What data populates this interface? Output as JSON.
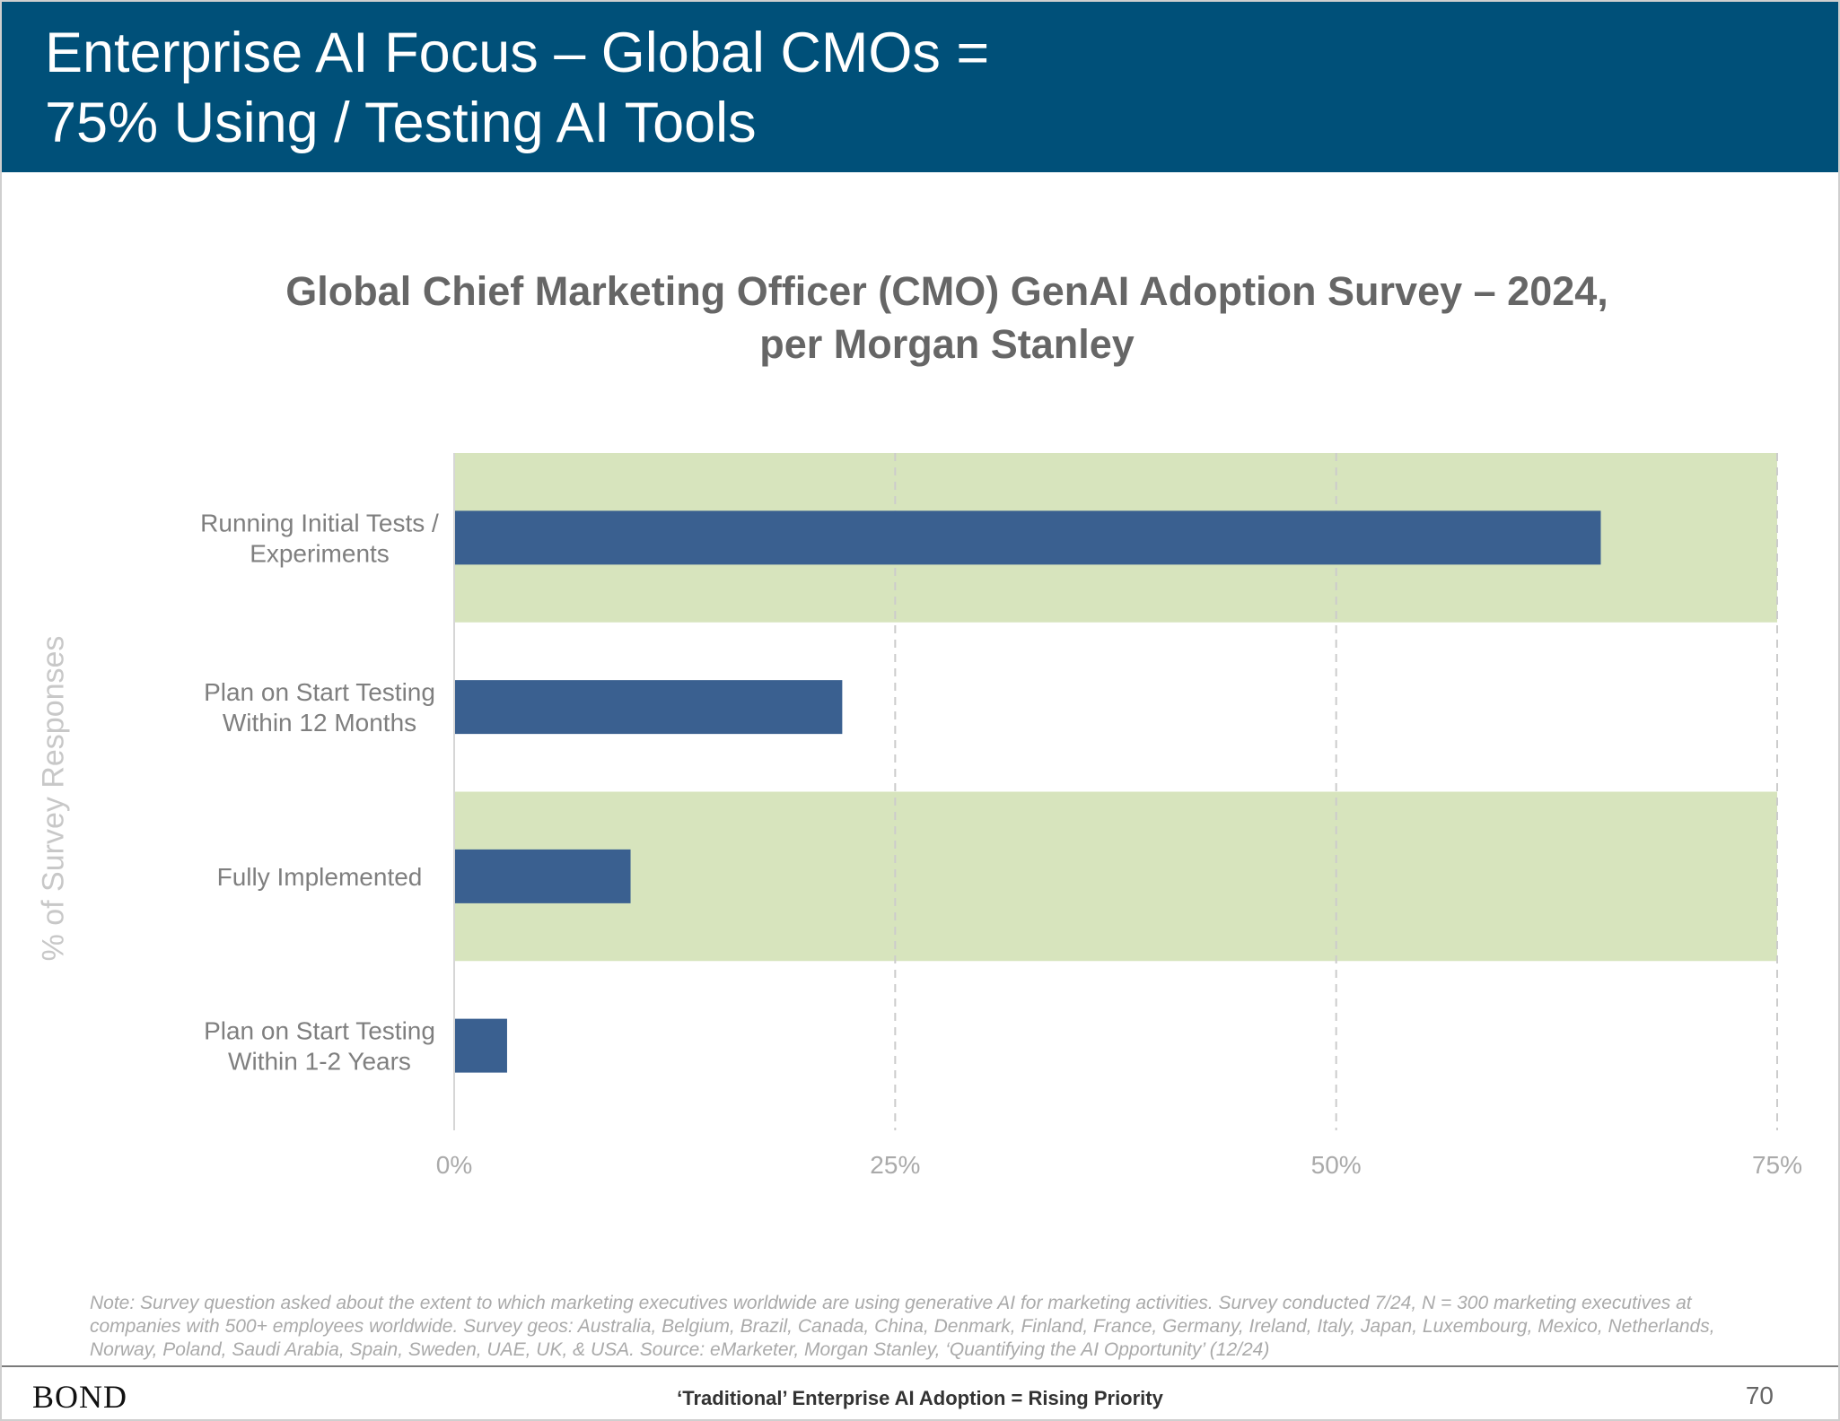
{
  "header": {
    "title_line1": "Enterprise AI Focus – Global CMOs =",
    "title_line2": "75% Using / Testing AI Tools"
  },
  "chart_data": {
    "type": "bar",
    "orientation": "horizontal",
    "title_line1": "Global Chief Marketing Officer (CMO) GenAI Adoption Survey – 2024,",
    "title_line2": "per Morgan Stanley",
    "ylabel": "% of Survey Responses",
    "xlabel": "",
    "categories": [
      [
        "Running Initial Tests /",
        "Experiments"
      ],
      [
        "Plan on Start Testing",
        "Within 12 Months"
      ],
      [
        "Fully Implemented"
      ],
      [
        "Plan on Start Testing",
        "Within 1-2 Years"
      ]
    ],
    "values": [
      65,
      22,
      10,
      3
    ],
    "highlighted_categories": [
      0,
      2
    ],
    "xlim": [
      0,
      75
    ],
    "x_ticks": [
      0,
      25,
      50,
      75
    ],
    "x_tick_labels": [
      "0%",
      "25%",
      "50%",
      "75%"
    ],
    "grid": "vertical dashed",
    "colors": {
      "bar": "#3a6090",
      "highlight_band": "#d7e4bd",
      "grid": "#cccccc",
      "axis_text": "#aaaaaa",
      "category_text": "#7f7f7f"
    }
  },
  "note": "Note: Survey question asked about the extent to which marketing executives worldwide are using generative AI for marketing activities. Survey conducted 7/24, N = 300 marketing executives at companies with 500+ employees worldwide. Survey geos: Australia, Belgium, Brazil, Canada, China, Denmark, Finland, France, Germany, Ireland, Italy, Japan, Luxembourg, Mexico, Netherlands, Norway, Poland, Saudi Arabia, Spain, Sweden, UAE, UK, & USA. Source: eMarketer, Morgan Stanley, ‘Quantifying the AI Opportunity’ (12/24)",
  "footer": {
    "brand": "BOND",
    "caption": "‘Traditional’ Enterprise AI Adoption = Rising Priority",
    "page_number": "70"
  },
  "colors": {
    "header_bg": "#005079",
    "header_text": "#ffffff"
  }
}
